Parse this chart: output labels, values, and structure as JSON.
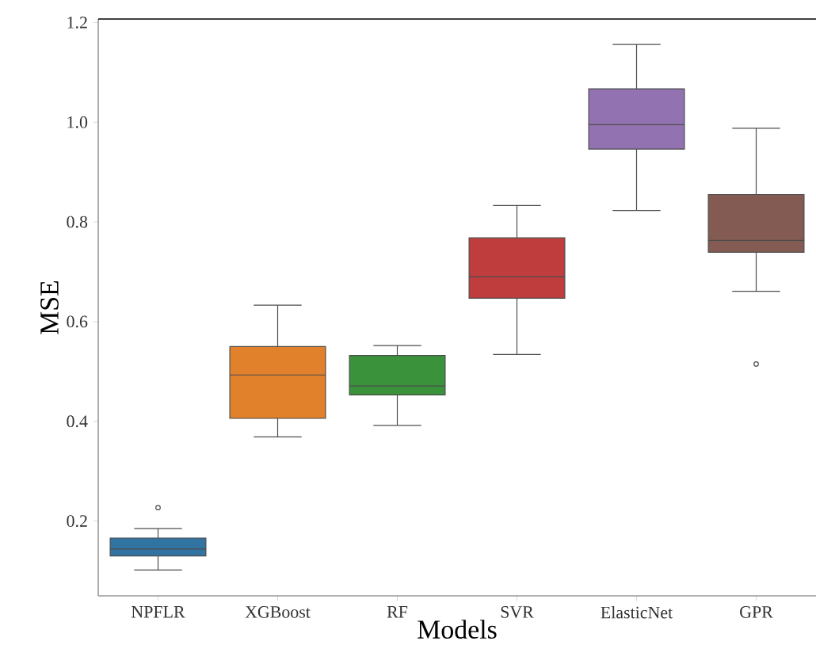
{
  "chart_data": {
    "type": "box",
    "xlabel": "Models",
    "ylabel": "MSE",
    "categories": [
      "NPFLR",
      "XGBoost",
      "RF",
      "SVR",
      "ElasticNet",
      "GPR"
    ],
    "colors": [
      "#3274a1",
      "#e1812c",
      "#3a923a",
      "#c03d3e",
      "#9372b2",
      "#845b53"
    ],
    "boxes": [
      {
        "low": 0.102,
        "q1": 0.13,
        "median": 0.144,
        "q3": 0.166,
        "high": 0.185,
        "outliers": [
          0.227
        ]
      },
      {
        "low": 0.369,
        "q1": 0.406,
        "median": 0.493,
        "q3": 0.55,
        "high": 0.633
      },
      {
        "low": 0.392,
        "q1": 0.453,
        "median": 0.471,
        "q3": 0.532,
        "high": 0.552
      },
      {
        "low": 0.534,
        "q1": 0.647,
        "median": 0.69,
        "q3": 0.768,
        "high": 0.833
      },
      {
        "low": 0.823,
        "q1": 0.946,
        "median": 0.995,
        "q3": 1.067,
        "high": 1.156
      },
      {
        "low": 0.661,
        "q1": 0.739,
        "median": 0.763,
        "q3": 0.855,
        "high": 0.988,
        "outliers": [
          0.515
        ]
      }
    ],
    "ylim": [
      0.05,
      1.207
    ],
    "yticks": [
      0.2,
      0.4,
      0.6,
      0.8,
      {
        "value": 1.0,
        "label": "1.0"
      },
      1.2
    ],
    "grid": false
  }
}
